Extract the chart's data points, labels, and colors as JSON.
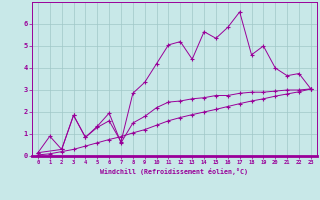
{
  "xlabel": "Windchill (Refroidissement éolien,°C)",
  "background_color": "#c8e8e8",
  "grid_color": "#a0c8c8",
  "line_color": "#990099",
  "xlim": [
    -0.5,
    23.5
  ],
  "ylim": [
    0,
    7
  ],
  "yticks": [
    0,
    1,
    2,
    3,
    4,
    5,
    6
  ],
  "xticks": [
    0,
    1,
    2,
    3,
    4,
    5,
    6,
    7,
    8,
    9,
    10,
    11,
    12,
    13,
    14,
    15,
    16,
    17,
    18,
    19,
    20,
    21,
    22,
    23
  ],
  "series1_x": [
    0,
    1,
    2,
    3,
    4,
    5,
    6,
    7,
    8,
    9,
    10,
    11,
    12,
    13,
    14,
    15,
    16,
    17,
    18,
    19,
    20,
    21,
    22,
    23
  ],
  "series1_y": [
    0.15,
    0.9,
    0.3,
    1.85,
    0.85,
    1.3,
    1.6,
    0.65,
    2.85,
    3.35,
    4.2,
    5.05,
    5.2,
    4.4,
    5.65,
    5.35,
    5.85,
    6.55,
    4.6,
    5.0,
    4.0,
    3.65,
    3.75,
    3.05
  ],
  "series2_x": [
    0,
    2,
    3,
    4,
    5,
    6,
    7,
    8,
    9,
    10,
    11,
    12,
    13,
    14,
    15,
    16,
    17,
    18,
    19,
    20,
    21,
    22,
    23
  ],
  "series2_y": [
    0.15,
    0.3,
    1.85,
    0.85,
    1.35,
    1.95,
    0.6,
    1.5,
    1.8,
    2.2,
    2.45,
    2.5,
    2.6,
    2.65,
    2.75,
    2.75,
    2.85,
    2.9,
    2.9,
    2.95,
    3.0,
    3.0,
    3.05
  ],
  "series3_x": [
    0,
    1,
    2,
    3,
    4,
    5,
    6,
    7,
    8,
    9,
    10,
    11,
    12,
    13,
    14,
    15,
    16,
    17,
    18,
    19,
    20,
    21,
    22,
    23
  ],
  "series3_y": [
    0.05,
    0.1,
    0.2,
    0.3,
    0.45,
    0.6,
    0.75,
    0.88,
    1.05,
    1.2,
    1.4,
    1.6,
    1.75,
    1.88,
    2.0,
    2.12,
    2.25,
    2.38,
    2.5,
    2.6,
    2.72,
    2.82,
    2.92,
    3.05
  ]
}
